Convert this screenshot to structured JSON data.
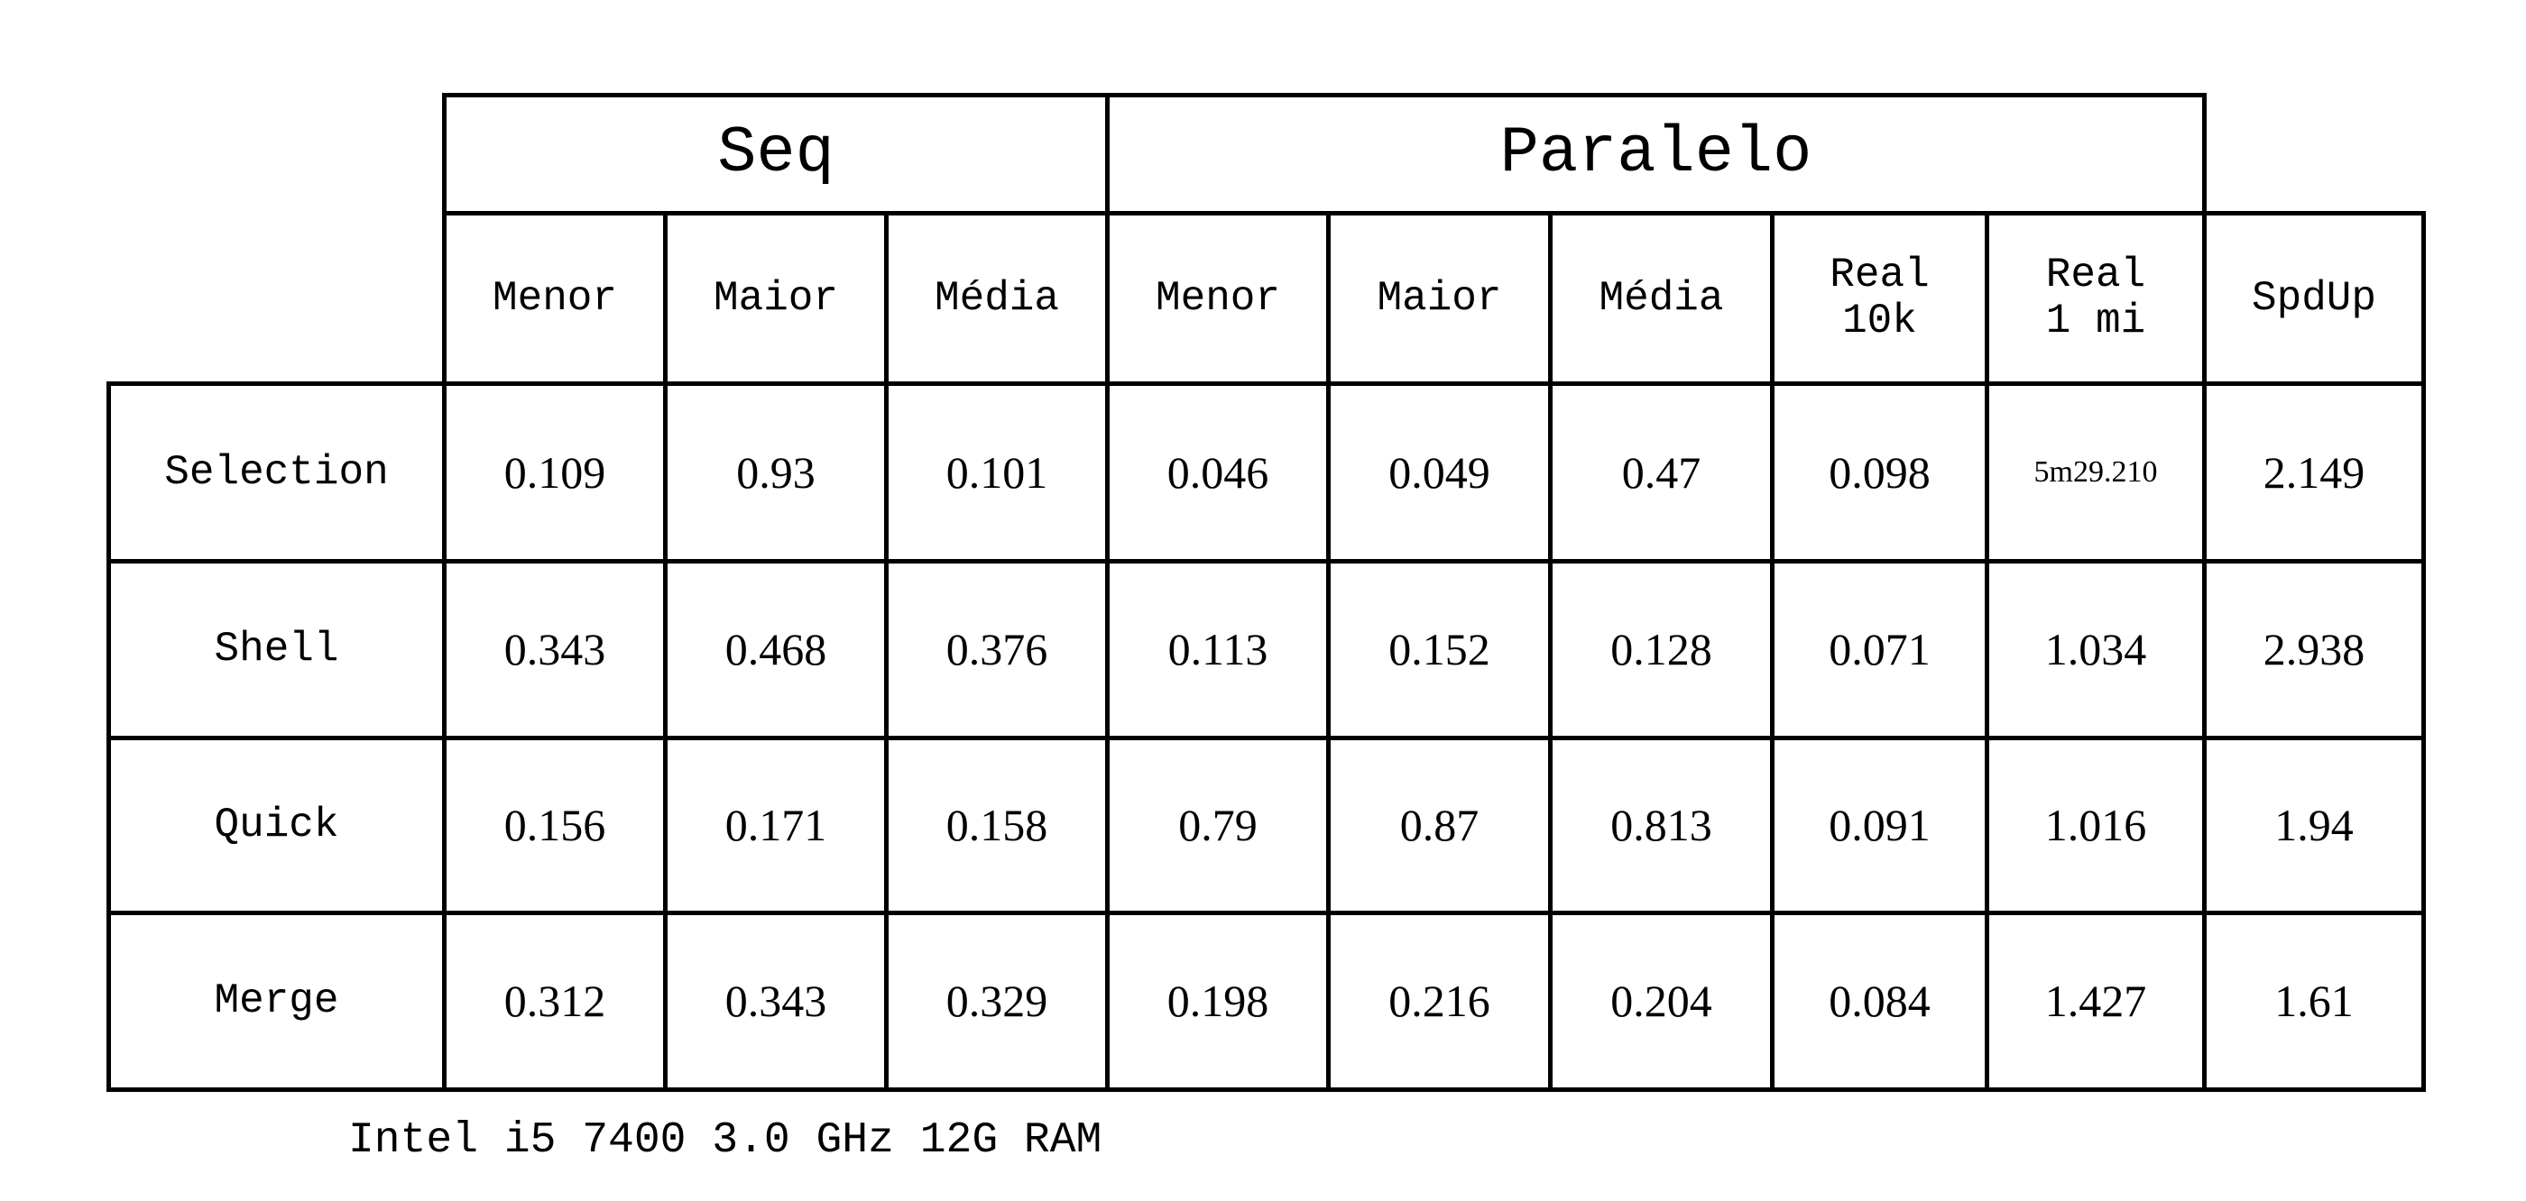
{
  "table": {
    "group_headers": [
      "Seq",
      "Paralelo"
    ],
    "column_headers": [
      "Menor",
      "Maior",
      "Média",
      "Menor",
      "Maior",
      "Média",
      "Real\n10k",
      "Real\n1 mi",
      "SpdUp"
    ],
    "rows": [
      {
        "label": "Selection",
        "values": [
          "0.109",
          "0.93",
          "0.101",
          "0.046",
          "0.049",
          "0.47",
          "0.098",
          "5m29.210",
          "2.149"
        ]
      },
      {
        "label": "Shell",
        "values": [
          "0.343",
          "0.468",
          "0.376",
          "0.113",
          "0.152",
          "0.128",
          "0.071",
          "1.034",
          "2.938"
        ]
      },
      {
        "label": "Quick",
        "values": [
          "0.156",
          "0.171",
          "0.158",
          "0.79",
          "0.87",
          "0.813",
          "0.091",
          "1.016",
          "1.94"
        ]
      },
      {
        "label": "Merge",
        "values": [
          "0.312",
          "0.343",
          "0.329",
          "0.198",
          "0.216",
          "0.204",
          "0.084",
          "1.427",
          "1.61"
        ]
      }
    ]
  },
  "footer": "Intel i5 7400 3.0 GHz 12G RAM"
}
